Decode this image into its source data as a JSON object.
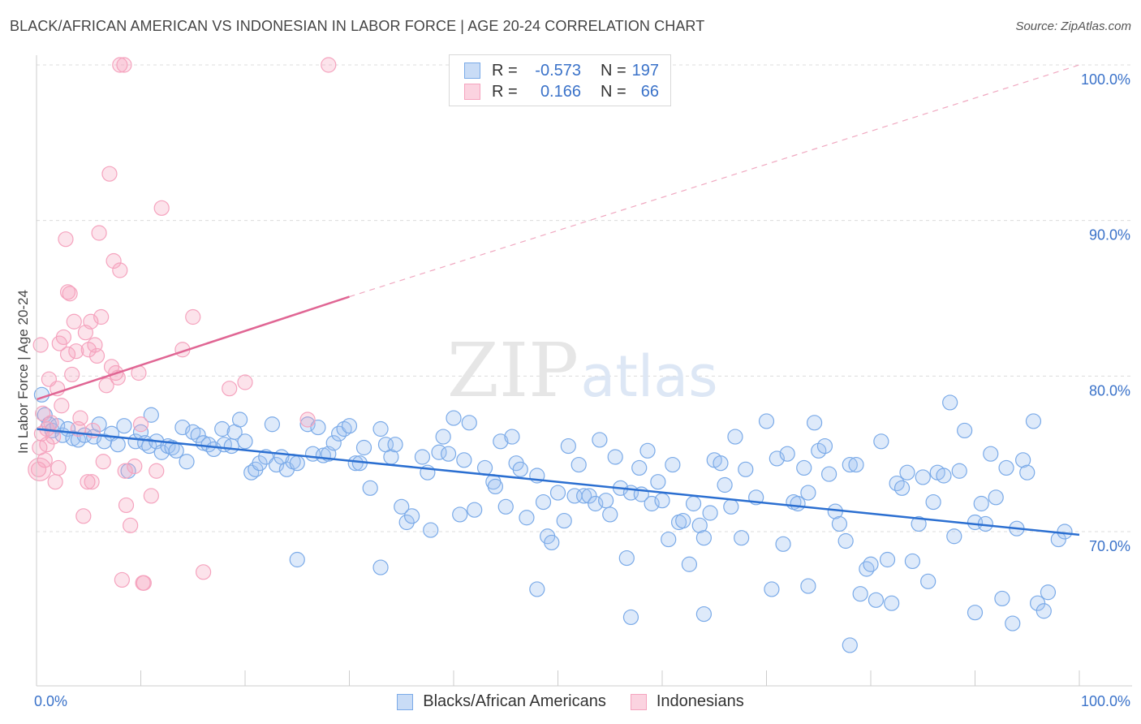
{
  "title": "BLACK/AFRICAN AMERICAN VS INDONESIAN IN LABOR FORCE | AGE 20-24 CORRELATION CHART",
  "source": "Source: ZipAtlas.com",
  "watermark": {
    "zip": "ZIP",
    "atlas": "atlas"
  },
  "legend": {
    "rows": [
      {
        "r_label": "R =",
        "r_value": "-0.573",
        "n_label": "N =",
        "n_value": "197"
      },
      {
        "r_label": "R =",
        "r_value": "0.166",
        "n_label": "N =",
        "n_value": "66"
      }
    ]
  },
  "chart_data": {
    "type": "scatter",
    "xlabel": "",
    "ylabel": "In Labor Force | Age 20-24",
    "xlim": [
      0,
      100
    ],
    "ylim": [
      60,
      102
    ],
    "x_tick_labels": [
      "0.0%",
      "100.0%"
    ],
    "y_ticks": [
      70,
      80,
      90,
      100
    ],
    "y_tick_labels": [
      "70.0%",
      "80.0%",
      "90.0%",
      "100.0%"
    ],
    "grid": true,
    "legend_position": "top-center",
    "series": [
      {
        "name": "Blacks/African Americans",
        "color": "#7aaae8",
        "line_color": "#2b6fd1",
        "trend": {
          "x": [
            0,
            100
          ],
          "y": [
            76.6,
            69.8
          ],
          "dashed_from": null
        },
        "points": [
          [
            0.5,
            78.8
          ],
          [
            0.8,
            77.5
          ],
          [
            1.2,
            76.9
          ],
          [
            1.5,
            76.5
          ],
          [
            2,
            76.8
          ],
          [
            2.5,
            76.2
          ],
          [
            3,
            76.6
          ],
          [
            3.5,
            76.0
          ],
          [
            4,
            75.9
          ],
          [
            4.6,
            76.2
          ],
          [
            5.5,
            76.1
          ],
          [
            6,
            76.9
          ],
          [
            6.5,
            75.8
          ],
          [
            7.2,
            76.3
          ],
          [
            7.8,
            75.6
          ],
          [
            8.4,
            76.8
          ],
          [
            8.8,
            73.9
          ],
          [
            9.5,
            75.8
          ],
          [
            10,
            76.4
          ],
          [
            10.4,
            75.7
          ],
          [
            10.8,
            75.5
          ],
          [
            11,
            77.5
          ],
          [
            11.5,
            75.8
          ],
          [
            12,
            75.1
          ],
          [
            12.6,
            75.5
          ],
          [
            13,
            75.4
          ],
          [
            13.4,
            75.2
          ],
          [
            14,
            76.7
          ],
          [
            14.4,
            74.5
          ],
          [
            15,
            76.4
          ],
          [
            15.5,
            76.2
          ],
          [
            16,
            75.7
          ],
          [
            16.5,
            75.6
          ],
          [
            17,
            75.3
          ],
          [
            17.8,
            76.6
          ],
          [
            18,
            75.6
          ],
          [
            18.7,
            75.5
          ],
          [
            19,
            76.4
          ],
          [
            19.5,
            77.2
          ],
          [
            20,
            75.8
          ],
          [
            20.6,
            73.8
          ],
          [
            21,
            74.0
          ],
          [
            21.4,
            74.4
          ],
          [
            22,
            74.8
          ],
          [
            22.6,
            76.9
          ],
          [
            23,
            74.3
          ],
          [
            23.5,
            74.8
          ],
          [
            24,
            74.0
          ],
          [
            24.6,
            74.5
          ],
          [
            25,
            74.4
          ],
          [
            26,
            76.9
          ],
          [
            26.5,
            75.0
          ],
          [
            27,
            76.7
          ],
          [
            27.5,
            74.9
          ],
          [
            28,
            75.0
          ],
          [
            28.5,
            75.7
          ],
          [
            29,
            76.3
          ],
          [
            29.5,
            76.6
          ],
          [
            30,
            76.8
          ],
          [
            30.6,
            74.4
          ],
          [
            31,
            74.4
          ],
          [
            31.4,
            75.4
          ],
          [
            32,
            72.8
          ],
          [
            33,
            76.6
          ],
          [
            33.5,
            75.6
          ],
          [
            34,
            74.8
          ],
          [
            34.4,
            75.6
          ],
          [
            35,
            71.6
          ],
          [
            35.5,
            70.6
          ],
          [
            36,
            71.0
          ],
          [
            37,
            74.8
          ],
          [
            37.5,
            73.8
          ],
          [
            37.8,
            70.1
          ],
          [
            38.6,
            75.1
          ],
          [
            39,
            76.1
          ],
          [
            39.5,
            75.0
          ],
          [
            40,
            77.3
          ],
          [
            40.6,
            71.1
          ],
          [
            41,
            74.6
          ],
          [
            41.5,
            77.0
          ],
          [
            42,
            71.4
          ],
          [
            43,
            74.1
          ],
          [
            43.8,
            73.2
          ],
          [
            44,
            72.9
          ],
          [
            44.5,
            75.8
          ],
          [
            45,
            71.6
          ],
          [
            45.6,
            76.1
          ],
          [
            46,
            74.4
          ],
          [
            46.4,
            74.0
          ],
          [
            47,
            70.9
          ],
          [
            48,
            73.6
          ],
          [
            48.6,
            71.9
          ],
          [
            49,
            69.7
          ],
          [
            49.4,
            69.3
          ],
          [
            50,
            72.5
          ],
          [
            50.6,
            70.7
          ],
          [
            51,
            75.5
          ],
          [
            51.6,
            72.3
          ],
          [
            52,
            74.3
          ],
          [
            52.5,
            72.3
          ],
          [
            53,
            72.3
          ],
          [
            53.6,
            71.8
          ],
          [
            54,
            75.9
          ],
          [
            54.6,
            72.0
          ],
          [
            55,
            71.1
          ],
          [
            55.5,
            74.8
          ],
          [
            56,
            72.8
          ],
          [
            56.6,
            68.3
          ],
          [
            57,
            72.5
          ],
          [
            57.8,
            74.1
          ],
          [
            58,
            72.4
          ],
          [
            58.6,
            75.2
          ],
          [
            59,
            71.8
          ],
          [
            59.6,
            73.2
          ],
          [
            60,
            72.0
          ],
          [
            60.6,
            69.5
          ],
          [
            61,
            74.3
          ],
          [
            61.6,
            70.6
          ],
          [
            62,
            70.7
          ],
          [
            62.6,
            67.9
          ],
          [
            63,
            71.8
          ],
          [
            63.6,
            70.4
          ],
          [
            64,
            69.6
          ],
          [
            64.6,
            71.2
          ],
          [
            65,
            74.6
          ],
          [
            65.6,
            74.4
          ],
          [
            66,
            73.0
          ],
          [
            66.6,
            71.6
          ],
          [
            67,
            76.1
          ],
          [
            67.6,
            69.6
          ],
          [
            68,
            74.0
          ],
          [
            69,
            72.2
          ],
          [
            70,
            77.1
          ],
          [
            70.5,
            66.3
          ],
          [
            71,
            74.7
          ],
          [
            71.6,
            69.2
          ],
          [
            72,
            75.0
          ],
          [
            72.6,
            71.9
          ],
          [
            73,
            71.8
          ],
          [
            73.6,
            74.1
          ],
          [
            74,
            72.5
          ],
          [
            74.6,
            77.0
          ],
          [
            75,
            75.2
          ],
          [
            75.6,
            75.5
          ],
          [
            76,
            73.7
          ],
          [
            76.6,
            71.3
          ],
          [
            77,
            70.5
          ],
          [
            77.6,
            69.4
          ],
          [
            78,
            74.3
          ],
          [
            78.6,
            74.3
          ],
          [
            79,
            66.0
          ],
          [
            79.6,
            67.6
          ],
          [
            80,
            67.9
          ],
          [
            80.5,
            65.6
          ],
          [
            81,
            75.8
          ],
          [
            81.6,
            68.2
          ],
          [
            82.5,
            73.1
          ],
          [
            83,
            72.8
          ],
          [
            83.5,
            73.8
          ],
          [
            84,
            68.1
          ],
          [
            84.6,
            70.5
          ],
          [
            85,
            73.5
          ],
          [
            85.5,
            66.8
          ],
          [
            86,
            71.9
          ],
          [
            86.4,
            73.8
          ],
          [
            87,
            73.6
          ],
          [
            87.6,
            78.3
          ],
          [
            88,
            69.7
          ],
          [
            88.5,
            73.9
          ],
          [
            89,
            76.5
          ],
          [
            90,
            70.6
          ],
          [
            90.6,
            71.8
          ],
          [
            91,
            70.5
          ],
          [
            91.5,
            75.0
          ],
          [
            92,
            72.2
          ],
          [
            92.6,
            65.7
          ],
          [
            93,
            74.1
          ],
          [
            93.6,
            64.1
          ],
          [
            94,
            70.2
          ],
          [
            94.6,
            74.6
          ],
          [
            95,
            73.8
          ],
          [
            95.6,
            77.1
          ],
          [
            96,
            65.4
          ],
          [
            96.6,
            64.9
          ],
          [
            97,
            66.1
          ],
          [
            98,
            69.5
          ],
          [
            98.6,
            70.0
          ],
          [
            25,
            68.2
          ],
          [
            33,
            67.7
          ],
          [
            48,
            66.3
          ],
          [
            57,
            64.5
          ],
          [
            64,
            64.7
          ],
          [
            74,
            66.5
          ],
          [
            78,
            62.7
          ],
          [
            82,
            65.4
          ],
          [
            90,
            64.8
          ]
        ]
      },
      {
        "name": "Indonesians",
        "color": "#f5a3be",
        "line_color": "#e06694",
        "trend": {
          "x": [
            0,
            30,
            100
          ],
          "y": [
            78.5,
            85.1,
            100.0
          ],
          "dashed_from": 30
        },
        "points": [
          [
            0.2,
            74.0
          ],
          [
            0.3,
            75.4
          ],
          [
            0.5,
            76.3
          ],
          [
            0.6,
            77.6
          ],
          [
            0.8,
            74.6
          ],
          [
            1,
            75.6
          ],
          [
            1.2,
            79.8
          ],
          [
            1.4,
            77.0
          ],
          [
            1.6,
            76.1
          ],
          [
            1.8,
            73.2
          ],
          [
            2,
            79.2
          ],
          [
            2.2,
            82.1
          ],
          [
            2.4,
            78.1
          ],
          [
            2.6,
            82.5
          ],
          [
            2.8,
            88.8
          ],
          [
            3,
            81.4
          ],
          [
            3.2,
            85.3
          ],
          [
            3.4,
            80.1
          ],
          [
            3.6,
            83.5
          ],
          [
            3.8,
            81.6
          ],
          [
            4,
            76.6
          ],
          [
            4.2,
            77.3
          ],
          [
            4.5,
            71.0
          ],
          [
            4.7,
            82.8
          ],
          [
            4.9,
            73.2
          ],
          [
            5,
            81.7
          ],
          [
            5.2,
            83.5
          ],
          [
            5.4,
            76.5
          ],
          [
            5.6,
            82.0
          ],
          [
            5.8,
            81.3
          ],
          [
            6,
            89.2
          ],
          [
            6.2,
            83.8
          ],
          [
            6.4,
            74.5
          ],
          [
            6.7,
            79.4
          ],
          [
            7,
            93.0
          ],
          [
            7.2,
            80.6
          ],
          [
            7.4,
            87.4
          ],
          [
            7.6,
            80.2
          ],
          [
            7.8,
            79.9
          ],
          [
            8,
            86.8
          ],
          [
            8.2,
            66.9
          ],
          [
            8.6,
            71.7
          ],
          [
            9,
            70.4
          ],
          [
            9.4,
            74.2
          ],
          [
            9.8,
            80.2
          ],
          [
            10,
            76.9
          ],
          [
            10.3,
            66.7
          ],
          [
            11,
            72.3
          ],
          [
            11.5,
            73.9
          ],
          [
            12,
            90.8
          ],
          [
            14,
            81.7
          ],
          [
            15,
            83.8
          ],
          [
            16,
            67.4
          ],
          [
            18.5,
            79.2
          ],
          [
            20,
            79.6
          ],
          [
            26,
            77.2
          ],
          [
            28,
            100.0
          ],
          [
            8,
            100.0
          ],
          [
            8.4,
            100.0
          ],
          [
            3,
            85.4
          ],
          [
            0.4,
            82.0
          ],
          [
            1,
            76.6
          ],
          [
            2.1,
            74.1
          ],
          [
            5.3,
            73.2
          ],
          [
            8.5,
            73.9
          ],
          [
            10.2,
            66.7
          ]
        ]
      }
    ]
  }
}
